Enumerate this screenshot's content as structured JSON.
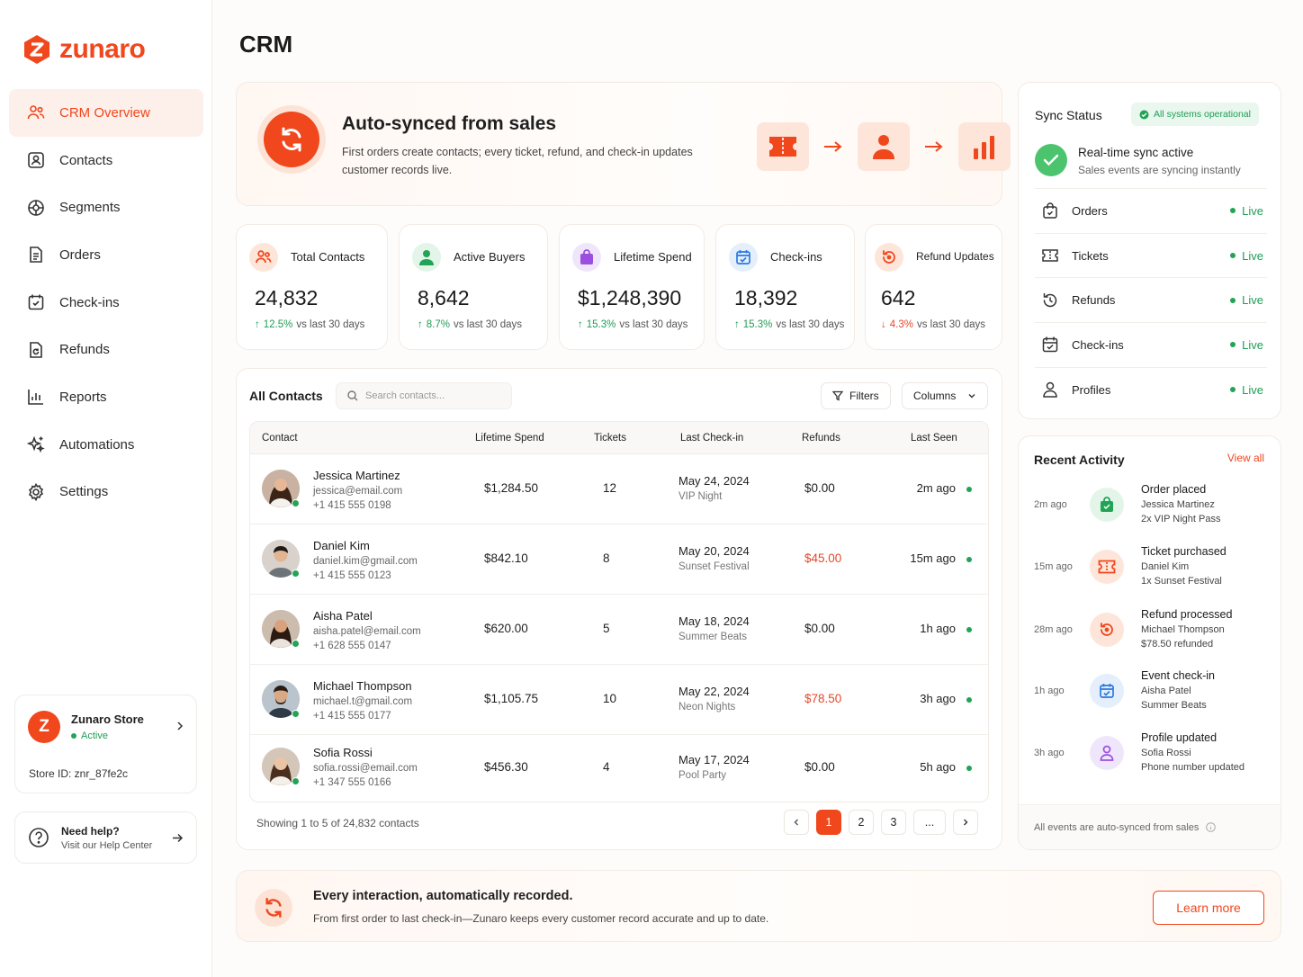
{
  "brand": {
    "name": "zunaro",
    "accent": "#f0471d"
  },
  "page": {
    "title": "CRM"
  },
  "sidebar": {
    "items": [
      {
        "label": "CRM Overview",
        "icon": "users-icon",
        "active": true
      },
      {
        "label": "Contacts",
        "icon": "contact-card-icon"
      },
      {
        "label": "Segments",
        "icon": "segments-icon"
      },
      {
        "label": "Orders",
        "icon": "document-icon"
      },
      {
        "label": "Check-ins",
        "icon": "calendar-check-icon"
      },
      {
        "label": "Refunds",
        "icon": "refund-document-icon"
      },
      {
        "label": "Reports",
        "icon": "bar-chart-icon"
      },
      {
        "label": "Automations",
        "icon": "sparkles-icon"
      },
      {
        "label": "Settings",
        "icon": "gear-icon"
      }
    ],
    "store": {
      "badge": "Z",
      "name": "Zunaro Store",
      "status": "Active",
      "store_id": "Store ID: znr_87fe2c"
    },
    "help": {
      "title": "Need help?",
      "subtitle": "Visit our Help Center"
    }
  },
  "hero": {
    "title": "Auto-synced from sales",
    "description": "First orders create contacts; every ticket, refund, and check-in updates customer records live."
  },
  "stats": [
    {
      "label": "Total Contacts",
      "value": "24,832",
      "delta": "12.5%",
      "direction": "up",
      "compare": "vs last 30 days",
      "icon": "users-icon",
      "color": "#fde6d9"
    },
    {
      "label": "Active Buyers",
      "value": "8,642",
      "delta": "8.7%",
      "direction": "up",
      "compare": "vs last 30 days",
      "icon": "user-icon",
      "color": "#e3f5e8"
    },
    {
      "label": "Lifetime Spend",
      "value": "$1,248,390",
      "delta": "15.3%",
      "direction": "up",
      "compare": "vs last 30 days",
      "icon": "shopping-bag-icon",
      "color": "#f0e6fb"
    },
    {
      "label": "Check-ins",
      "value": "18,392",
      "delta": "15.3%",
      "direction": "up",
      "compare": "vs last 30 days",
      "icon": "calendar-check-icon",
      "color": "#e4effb"
    },
    {
      "label": "Refund Updates",
      "value": "642",
      "delta": "4.3%",
      "direction": "down",
      "compare": "vs last 30 days",
      "icon": "refund-icon",
      "color": "#fde6d9"
    }
  ],
  "contacts": {
    "title": "All Contacts",
    "search_placeholder": "Search contacts...",
    "filters_label": "Filters",
    "columns_label": "Columns",
    "headers": [
      "Contact",
      "Lifetime Spend",
      "Tickets",
      "Last Check-in",
      "Refunds",
      "Last Seen"
    ],
    "rows": [
      {
        "name": "Jessica Martinez",
        "email": "jessica@email.com",
        "phone": "+1 415 555 0198",
        "spend": "$1,284.50",
        "tickets": "12",
        "date": "May 24, 2024",
        "event": "VIP Night",
        "refund": "$0.00",
        "refund_flag": false,
        "seen": "2m ago"
      },
      {
        "name": "Daniel Kim",
        "email": "daniel.kim@gmail.com",
        "phone": "+1 415 555 0123",
        "spend": "$842.10",
        "tickets": "8",
        "date": "May 20, 2024",
        "event": "Sunset Festival",
        "refund": "$45.00",
        "refund_flag": true,
        "seen": "15m ago"
      },
      {
        "name": "Aisha Patel",
        "email": "aisha.patel@email.com",
        "phone": "+1 628 555 0147",
        "spend": "$620.00",
        "tickets": "5",
        "date": "May 18, 2024",
        "event": "Summer Beats",
        "refund": "$0.00",
        "refund_flag": false,
        "seen": "1h ago"
      },
      {
        "name": "Michael Thompson",
        "email": "michael.t@gmail.com",
        "phone": "+1 415 555 0177",
        "spend": "$1,105.75",
        "tickets": "10",
        "date": "May 22, 2024",
        "event": "Neon Nights",
        "refund": "$78.50",
        "refund_flag": true,
        "seen": "3h ago"
      },
      {
        "name": "Sofia Rossi",
        "email": "sofia.rossi@email.com",
        "phone": "+1 347 555 0166",
        "spend": "$456.30",
        "tickets": "4",
        "date": "May 17, 2024",
        "event": "Pool Party",
        "refund": "$0.00",
        "refund_flag": false,
        "seen": "5h ago"
      }
    ],
    "showing": "Showing 1 to 5 of 24,832 contacts",
    "pages": [
      "1",
      "2",
      "3",
      "..."
    ]
  },
  "sync": {
    "title": "Sync Status",
    "badge": "All systems operational",
    "realtime_title": "Real-time sync active",
    "realtime_sub": "Sales events are syncing instantly",
    "items": [
      {
        "label": "Orders",
        "status": "Live",
        "icon": "shopping-bag-icon"
      },
      {
        "label": "Tickets",
        "status": "Live",
        "icon": "ticket-icon"
      },
      {
        "label": "Refunds",
        "status": "Live",
        "icon": "refund-icon"
      },
      {
        "label": "Check-ins",
        "status": "Live",
        "icon": "calendar-check-icon"
      },
      {
        "label": "Profiles",
        "status": "Live",
        "icon": "user-icon"
      }
    ]
  },
  "activity": {
    "title": "Recent Activity",
    "view_all": "View all",
    "items": [
      {
        "time": "2m ago",
        "title": "Order placed",
        "line1": "Jessica Martinez",
        "line2": "2x VIP Night Pass",
        "icon": "shopping-bag-icon",
        "color": "#e3f5e8"
      },
      {
        "time": "15m ago",
        "title": "Ticket purchased",
        "line1": "Daniel Kim",
        "line2": "1x Sunset Festival",
        "icon": "ticket-icon",
        "color": "#fde6d9"
      },
      {
        "time": "28m ago",
        "title": "Refund processed",
        "line1": "Michael Thompson",
        "line2": "$78.50 refunded",
        "icon": "refund-icon",
        "color": "#fde6d9"
      },
      {
        "time": "1h ago",
        "title": "Event check-in",
        "line1": "Aisha Patel",
        "line2": "Summer Beats",
        "icon": "calendar-check-icon",
        "color": "#e4effb"
      },
      {
        "time": "3h ago",
        "title": "Profile updated",
        "line1": "Sofia Rossi",
        "line2": "Phone number updated",
        "icon": "user-icon",
        "color": "#f0e6fb"
      }
    ],
    "footer": "All events are auto-synced from sales"
  },
  "banner": {
    "title": "Every interaction, automatically recorded.",
    "subtitle": "From first order to last check-in—Zunaro keeps every customer record accurate and up to date.",
    "button": "Learn more"
  }
}
